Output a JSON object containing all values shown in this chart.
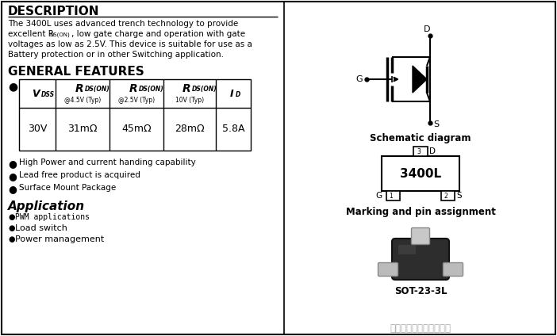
{
  "bg_color": "#ffffff",
  "description_title": "DESCRIPTION",
  "features_title": "GENERAL FEATURES",
  "application_title": "Application",
  "schematic_title": "Schematic diagram",
  "marking_title": "Marking and pin assignment",
  "package_name": "SOT-23-3L",
  "chip_label": "3400L",
  "company": "深圳市谷峰电子有限公司",
  "table_values": [
    "30V",
    "31mΩ",
    "45mΩ",
    "28mΩ",
    "5.8A"
  ],
  "features": [
    "High Power and current handing capability",
    "Lead free product is acquired",
    "Surface Mount Package"
  ]
}
